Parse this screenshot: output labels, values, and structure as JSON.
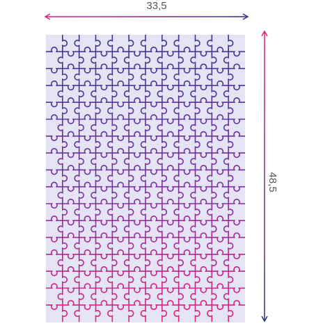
{
  "width_label": "33,5",
  "height_label": "48,5"
}
